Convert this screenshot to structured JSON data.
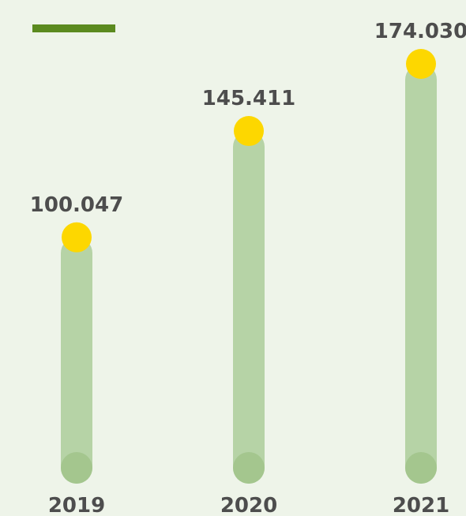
{
  "chart_data": {
    "type": "bar",
    "categories": [
      "2019",
      "2020",
      "2021"
    ],
    "values": [
      100.047,
      145.411,
      174.03
    ],
    "value_labels": [
      "100.047",
      "145.411",
      "174.030"
    ],
    "color": "#b6d3a6"
  }
}
